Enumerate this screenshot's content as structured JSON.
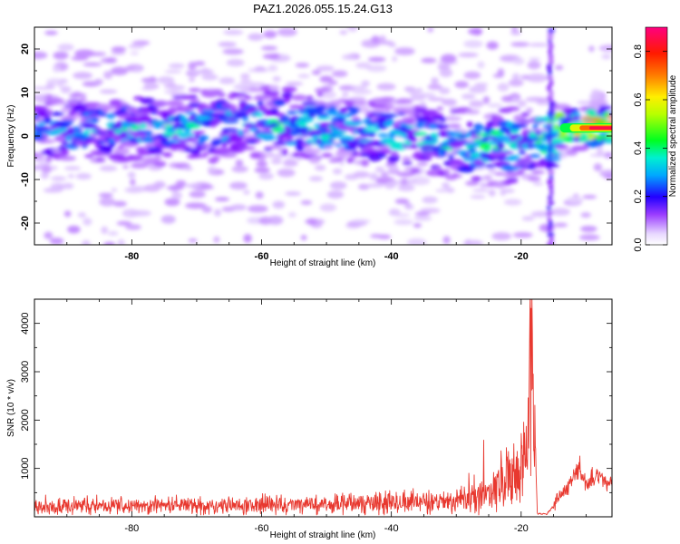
{
  "title": "PAZ1.2026.055.15.24.G13",
  "colors": {
    "snr_line": "#e8382f",
    "frame": "#000000",
    "background": "#ffffff"
  },
  "chart_data": [
    {
      "type": "heatmap",
      "name": "spectrogram",
      "xlabel": "Height of straight line (km)",
      "ylabel": "Frequency (Hz)",
      "xlim": [
        -95,
        -6
      ],
      "ylim": [
        -25,
        25
      ],
      "xticks": [
        -80,
        -60,
        -40,
        -20
      ],
      "xtick_labels": [
        "-80",
        "-60",
        "-40",
        "-20"
      ],
      "yticks": [
        -20,
        -10,
        0,
        10,
        20
      ],
      "ytick_labels": [
        "-20",
        "-10",
        "0",
        "10",
        "20"
      ],
      "colorbar": {
        "label": "Normalized spectral amplitude",
        "range": [
          0.0,
          0.9
        ],
        "ticks": [
          0.0,
          0.2,
          0.4,
          0.6,
          0.8
        ],
        "tick_labels": [
          "0.0",
          "0.2",
          "0.4",
          "0.6",
          "0.8"
        ]
      },
      "ridge": {
        "x": [
          -94,
          -85,
          -75,
          -65,
          -55,
          -45,
          -35,
          -28,
          -22,
          -18,
          -14,
          -10,
          -6
        ],
        "freq": [
          1,
          1.5,
          2,
          2.5,
          3,
          1,
          -1,
          -2,
          -2.5,
          -1,
          1.5,
          1.8,
          2
        ],
        "amplitude": [
          0.25,
          0.3,
          0.32,
          0.3,
          0.35,
          0.3,
          0.32,
          0.35,
          0.4,
          0.35,
          0.55,
          0.75,
          0.9
        ]
      },
      "vertical_band_x": -15.5
    },
    {
      "type": "line",
      "name": "snr",
      "xlabel": "Height of straight line (km)",
      "ylabel": "SNR (10 * v/v)",
      "xlim": [
        -95,
        -6
      ],
      "ylim": [
        0,
        4500
      ],
      "xticks": [
        -80,
        -60,
        -40,
        -20
      ],
      "xtick_labels": [
        "-80",
        "-60",
        "-40",
        "-20"
      ],
      "yticks": [
        1000,
        2000,
        3000,
        4000
      ],
      "ytick_labels": [
        "1000",
        "2000",
        "3000",
        "4000"
      ],
      "anchors": {
        "x": [
          -95,
          -80,
          -60,
          -50,
          -40,
          -35,
          -30,
          -26,
          -24,
          -22,
          -20,
          -19,
          -18.4,
          -18,
          -17.5,
          -16,
          -14,
          -12,
          -11,
          -10,
          -8,
          -6
        ],
        "y": [
          220,
          220,
          240,
          250,
          300,
          300,
          330,
          420,
          600,
          900,
          800,
          1300,
          4400,
          2200,
          60,
          60,
          400,
          800,
          1000,
          700,
          850,
          650
        ]
      }
    }
  ]
}
